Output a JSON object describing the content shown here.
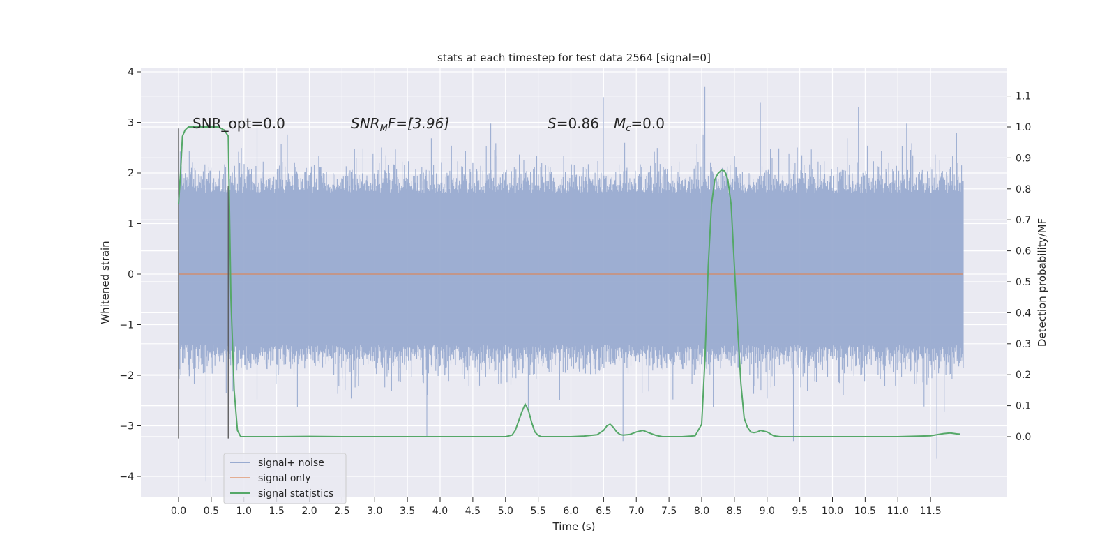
{
  "chart_data": {
    "type": "line",
    "title": "stats at each timestep for test data 2564 [signal=0]",
    "xlabel": "Time (s)",
    "ylabel": "Whitened strain",
    "y2label": "Detection probability/MF",
    "xlim": [
      -0.58,
      12.6
    ],
    "ylim": [
      -4.45,
      4.1
    ],
    "y2lim": [
      -0.2,
      1.2
    ],
    "x_ticks": [
      0.0,
      0.5,
      1.0,
      1.5,
      2.0,
      2.5,
      3.0,
      3.5,
      4.0,
      4.5,
      5.0,
      5.5,
      6.0,
      6.5,
      7.0,
      7.5,
      8.0,
      8.5,
      9.0,
      9.5,
      10.0,
      10.5,
      11.0,
      11.5
    ],
    "x_tick_labels": [
      "0.0",
      "0.5",
      "1.0",
      "1.5",
      "2.0",
      "2.5",
      "3.0",
      "3.5",
      "4.0",
      "4.5",
      "5.0",
      "5.5",
      "6.0",
      "6.5",
      "7.0",
      "7.5",
      "8.0",
      "8.5",
      "9.0",
      "9.5",
      "10.0",
      "10.5",
      "11.0",
      "11.5"
    ],
    "y_ticks": [
      -4,
      -3,
      -2,
      -1,
      0,
      1,
      2,
      3,
      4
    ],
    "y_tick_labels": [
      "−4",
      "−3",
      "−2",
      "−1",
      "0",
      "1",
      "2",
      "3",
      "4"
    ],
    "y2_ticks": [
      0.0,
      0.1,
      0.2,
      0.3,
      0.4,
      0.5,
      0.6,
      0.7,
      0.8,
      0.9,
      1.0,
      1.1
    ],
    "y2_tick_labels": [
      "0.0",
      "0.1",
      "0.2",
      "0.3",
      "0.4",
      "0.5",
      "0.6",
      "0.7",
      "0.8",
      "0.9",
      "1.0",
      "1.1"
    ],
    "grid": true,
    "legend_position": "lower-left",
    "annotations": {
      "snr_opt": "SNR_opt=0.0",
      "snr_mf_main": "SNR",
      "snr_mf_sub": "M",
      "snr_mf_rest": "F=[3.96]",
      "s_main": "S",
      "s_rest": "=0.86",
      "mc_main": "M",
      "mc_sub": "c",
      "mc_rest": "=0.0"
    },
    "markers": [
      {
        "x": 0.0,
        "y_range": [
          -3.25,
          2.88
        ]
      },
      {
        "x": 0.76,
        "y_range": [
          -3.25,
          1.75
        ]
      }
    ],
    "series": [
      {
        "name": "signal+ noise",
        "color": "#99abd0",
        "x_range": [
          0.0,
          12.0
        ],
        "band_typical": [
          -1.4,
          1.6
        ],
        "peaks_max": [
          {
            "x": 0.0,
            "y": 2.88
          },
          {
            "x": 1.2,
            "y": 3.0
          },
          {
            "x": 6.5,
            "y": 3.5
          },
          {
            "x": 8.05,
            "y": 3.7
          },
          {
            "x": 8.9,
            "y": 3.4
          },
          {
            "x": 10.4,
            "y": 3.3
          },
          {
            "x": 11.9,
            "y": 2.8
          }
        ],
        "peaks_min": [
          {
            "x": 0.42,
            "y": -4.1
          },
          {
            "x": 3.8,
            "y": -3.2
          },
          {
            "x": 6.8,
            "y": -3.3
          },
          {
            "x": 9.4,
            "y": -3.3
          },
          {
            "x": 11.6,
            "y": -3.65
          }
        ]
      },
      {
        "name": "signal only",
        "color": "#dd8452",
        "x": [
          0.0,
          12.0
        ],
        "y": [
          0.0,
          0.0
        ]
      },
      {
        "name": "signal statistics",
        "color": "#55a868",
        "axis": "right",
        "x": [
          0.0,
          0.03,
          0.06,
          0.1,
          0.15,
          0.2,
          0.3,
          0.4,
          0.5,
          0.6,
          0.7,
          0.76,
          0.8,
          0.85,
          0.9,
          0.95,
          1.0,
          1.5,
          2.0,
          2.5,
          3.0,
          3.5,
          4.0,
          4.5,
          5.0,
          5.1,
          5.15,
          5.2,
          5.25,
          5.3,
          5.35,
          5.4,
          5.45,
          5.5,
          5.55,
          5.6,
          5.7,
          6.0,
          6.2,
          6.4,
          6.5,
          6.55,
          6.6,
          6.65,
          6.7,
          6.75,
          6.8,
          6.9,
          7.0,
          7.1,
          7.2,
          7.3,
          7.4,
          7.5,
          7.7,
          7.9,
          8.0,
          8.05,
          8.1,
          8.15,
          8.2,
          8.25,
          8.3,
          8.35,
          8.4,
          8.45,
          8.5,
          8.55,
          8.6,
          8.65,
          8.7,
          8.75,
          8.8,
          8.85,
          8.9,
          9.0,
          9.1,
          9.2,
          9.3,
          9.4,
          9.5,
          10.0,
          10.5,
          11.0,
          11.5,
          11.7,
          11.8,
          11.9,
          11.95
        ],
        "y": [
          0.75,
          0.85,
          0.97,
          0.99,
          1.0,
          1.0,
          1.0,
          1.0,
          1.0,
          1.0,
          0.99,
          0.97,
          0.45,
          0.15,
          0.02,
          0.0,
          0.0,
          0.0,
          0.001,
          0.0,
          0.0,
          0.0,
          0.0,
          0.0,
          0.0,
          0.005,
          0.02,
          0.05,
          0.08,
          0.105,
          0.085,
          0.045,
          0.015,
          0.004,
          0.0,
          0.0,
          0.0,
          0.0,
          0.002,
          0.006,
          0.02,
          0.035,
          0.04,
          0.03,
          0.015,
          0.007,
          0.005,
          0.007,
          0.015,
          0.02,
          0.012,
          0.004,
          0.0,
          0.0,
          0.0,
          0.003,
          0.04,
          0.25,
          0.55,
          0.75,
          0.83,
          0.85,
          0.86,
          0.858,
          0.83,
          0.75,
          0.55,
          0.35,
          0.17,
          0.06,
          0.03,
          0.015,
          0.013,
          0.015,
          0.02,
          0.015,
          0.003,
          0.0,
          0.0,
          0.0,
          0.0,
          0.0,
          0.0,
          0.0,
          0.003,
          0.01,
          0.012,
          0.009,
          0.008
        ]
      }
    ]
  }
}
